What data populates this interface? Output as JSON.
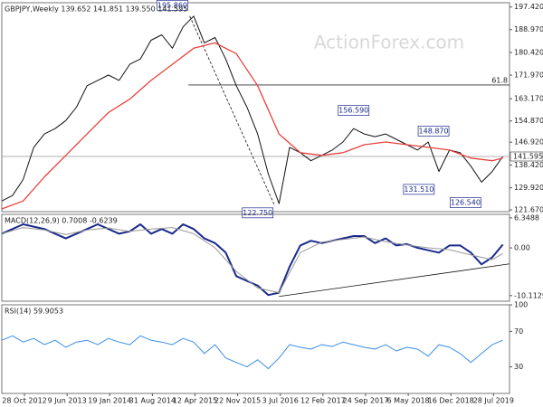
{
  "chart_data": [
    {
      "type": "line",
      "title": "GBPJPY,Weekly  139.652 141.851 139.550 141.595",
      "watermark": "ActionForex.com",
      "xlim": [
        0,
        381
      ],
      "xticks": [
        {
          "value": 17,
          "label": "28 Oct 2012"
        },
        {
          "value": 49,
          "label": "9 Jun 2013"
        },
        {
          "value": 81,
          "label": "19 Jan 2014"
        },
        {
          "value": 113,
          "label": "31 Aug 2014"
        },
        {
          "value": 145,
          "label": "12 Apr 2015"
        },
        {
          "value": 177,
          "label": "22 Nov 2015"
        },
        {
          "value": 209,
          "label": "3 Jul 2016"
        },
        {
          "value": 241,
          "label": "12 Feb 2017"
        },
        {
          "value": 273,
          "label": "24 Sep 2017"
        },
        {
          "value": 305,
          "label": "6 May 2018"
        },
        {
          "value": 337,
          "label": "16 Dec 2018"
        },
        {
          "value": 369,
          "label": "28 Jul 2019"
        }
      ],
      "ylim": [
        121,
        199
      ],
      "yticks": [
        {
          "value": 197.42,
          "label": "197.420"
        },
        {
          "value": 188.97,
          "label": "188.970"
        },
        {
          "value": 180.42,
          "label": "180.420"
        },
        {
          "value": 171.97,
          "label": "171.970"
        },
        {
          "value": 163.17,
          "label": "163.170"
        },
        {
          "value": 154.87,
          "label": "154.870"
        },
        {
          "value": 146.92,
          "label": "146.920"
        },
        {
          "value": 138.42,
          "label": "138.420"
        },
        {
          "value": 129.92,
          "label": "129.920"
        },
        {
          "value": 121.67,
          "label": "121.670"
        }
      ],
      "series": [
        {
          "name": "GBPJPY",
          "color": "#111111",
          "width": 1,
          "x": [
            0,
            8,
            16,
            24,
            32,
            40,
            48,
            56,
            64,
            72,
            80,
            88,
            96,
            104,
            112,
            120,
            128,
            136,
            144,
            152,
            160,
            168,
            176,
            184,
            192,
            200,
            208,
            216,
            224,
            232,
            240,
            248,
            256,
            264,
            272,
            280,
            288,
            296,
            304,
            312,
            320,
            328,
            336,
            344,
            352,
            360,
            368,
            376
          ],
          "values": [
            125,
            127,
            133,
            145,
            150,
            152,
            155,
            160,
            168,
            170,
            172,
            170,
            176,
            178,
            185,
            187,
            182,
            190,
            194,
            184,
            186,
            178,
            168,
            160,
            150,
            135,
            124,
            145,
            143,
            140,
            142,
            144,
            147,
            152,
            150,
            149,
            150,
            148,
            146,
            144,
            147,
            136,
            144,
            143,
            138,
            132,
            136,
            141.6
          ]
        },
        {
          "name": "MA",
          "color": "#e8413c",
          "width": 1.3,
          "x": [
            0,
            16,
            32,
            48,
            64,
            80,
            96,
            112,
            128,
            144,
            160,
            176,
            192,
            208,
            224,
            240,
            256,
            272,
            288,
            304,
            320,
            336,
            352,
            368,
            376
          ],
          "values": [
            122,
            125,
            134,
            142,
            150,
            158,
            163,
            170,
            176,
            182,
            184,
            180,
            168,
            150,
            143,
            142,
            143,
            146,
            147,
            146,
            145,
            144,
            141,
            140,
            141
          ]
        }
      ],
      "annotations": [
        {
          "value": 195.86,
          "label": "195.860",
          "x": 128,
          "kind": "high"
        },
        {
          "value": 122.75,
          "label": "122.750",
          "x": 192,
          "kind": "low"
        },
        {
          "value": 156.59,
          "label": "156.590",
          "x": 264,
          "kind": "high"
        },
        {
          "value": 148.87,
          "label": "148.870",
          "x": 324,
          "kind": "high"
        },
        {
          "value": 131.51,
          "label": "131.510",
          "x": 313,
          "kind": "low"
        },
        {
          "value": 126.54,
          "label": "126.540",
          "x": 348,
          "kind": "low"
        }
      ],
      "hlines": [
        {
          "value": 168.3,
          "name": "61.8",
          "x_start": 140
        }
      ],
      "last": {
        "value": 141.595,
        "label": "141.595"
      },
      "trendlines": [
        {
          "x": [
            141,
            205
          ],
          "y": [
            194,
            123
          ],
          "dashed": true
        }
      ]
    },
    {
      "type": "line",
      "title": "MACD(12,26,9) 0.7008 -0.6239",
      "xlim": [
        0,
        381
      ],
      "ylim": [
        -11.3,
        7.1
      ],
      "yticks": [
        6.3488,
        {
          "value": 0,
          "label": "0.00"
        },
        -10.1129
      ],
      "series": [
        {
          "name": "MACD",
          "color": "#1a2a8c",
          "width": 2,
          "x": [
            0,
            8,
            16,
            24,
            32,
            40,
            48,
            56,
            64,
            72,
            80,
            88,
            96,
            104,
            112,
            120,
            128,
            136,
            144,
            152,
            160,
            168,
            176,
            184,
            192,
            200,
            208,
            216,
            224,
            232,
            240,
            248,
            256,
            264,
            272,
            280,
            288,
            296,
            304,
            312,
            320,
            328,
            336,
            344,
            352,
            360,
            368,
            376
          ],
          "values": [
            3,
            4,
            5,
            4.5,
            4,
            3,
            2,
            3,
            4,
            5,
            4,
            3,
            3.5,
            5,
            3,
            4,
            3,
            5,
            4,
            2,
            1,
            -1,
            -6,
            -7,
            -8,
            -10,
            -9.5,
            -4,
            0.5,
            1.5,
            1,
            1.5,
            2,
            2.5,
            2.5,
            1,
            2,
            0.5,
            0.8,
            0,
            -0.5,
            -1,
            0.5,
            0.5,
            -1,
            -3.5,
            -2,
            0.7
          ]
        },
        {
          "name": "Signal",
          "color": "#999999",
          "width": 1,
          "x": [
            0,
            16,
            32,
            48,
            64,
            80,
            96,
            112,
            128,
            144,
            160,
            176,
            192,
            208,
            224,
            240,
            256,
            272,
            288,
            304,
            320,
            336,
            352,
            368,
            376
          ],
          "values": [
            3,
            4.3,
            3.8,
            2.8,
            3.8,
            4.2,
            3.5,
            4,
            4.3,
            3,
            0,
            -5,
            -8.5,
            -9.5,
            -1,
            1.2,
            1.8,
            2.3,
            1.3,
            0.6,
            0,
            -0.4,
            -1.5,
            -2.5,
            -1.2
          ]
        }
      ],
      "trendlines": [
        {
          "x": [
            208,
            381
          ],
          "y": [
            -10.3,
            -3.4
          ],
          "dashed": false
        }
      ]
    },
    {
      "type": "line",
      "title": "RSI(14) 59.9053",
      "xlim": [
        0,
        381
      ],
      "ylim": [
        0,
        100
      ],
      "yticks": [
        100,
        70,
        30
      ],
      "series": [
        {
          "name": "RSI",
          "color": "#3a8ee6",
          "width": 1,
          "x": [
            0,
            8,
            16,
            24,
            32,
            40,
            48,
            56,
            64,
            72,
            80,
            88,
            96,
            104,
            112,
            120,
            128,
            136,
            144,
            152,
            160,
            168,
            176,
            184,
            192,
            200,
            208,
            216,
            224,
            232,
            240,
            248,
            256,
            264,
            272,
            280,
            288,
            296,
            304,
            312,
            320,
            328,
            336,
            344,
            352,
            360,
            368,
            376
          ],
          "values": [
            60,
            65,
            58,
            62,
            55,
            60,
            52,
            58,
            60,
            55,
            62,
            58,
            55,
            65,
            60,
            58,
            55,
            62,
            58,
            45,
            55,
            40,
            35,
            30,
            38,
            28,
            40,
            55,
            52,
            50,
            55,
            53,
            58,
            55,
            52,
            50,
            55,
            48,
            52,
            50,
            42,
            55,
            52,
            45,
            35,
            45,
            55,
            60
          ]
        }
      ]
    }
  ]
}
